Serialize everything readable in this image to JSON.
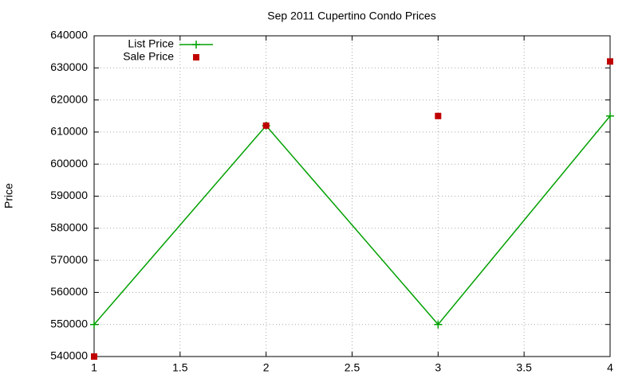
{
  "chart_data": {
    "type": "line",
    "title": "Sep 2011 Cupertino Condo Prices",
    "y_label": "Price",
    "x": [
      1,
      2,
      3,
      4
    ],
    "series": [
      {
        "name": "List Price",
        "color": "#00a000",
        "style": "linespoints",
        "values": [
          550000,
          612000,
          550000,
          615000
        ]
      },
      {
        "name": "Sale Price",
        "color": "#c00000",
        "style": "points",
        "values": [
          540000,
          612000,
          615000,
          632000
        ]
      }
    ],
    "xlim": [
      1,
      4
    ],
    "xticks": [
      1,
      1.5,
      2,
      2.5,
      3,
      3.5,
      4
    ],
    "ylim": [
      540000,
      640000
    ],
    "yticks": [
      540000,
      550000,
      560000,
      570000,
      580000,
      590000,
      600000,
      610000,
      620000,
      630000,
      640000
    ],
    "grid": true,
    "legend": "top-left"
  }
}
